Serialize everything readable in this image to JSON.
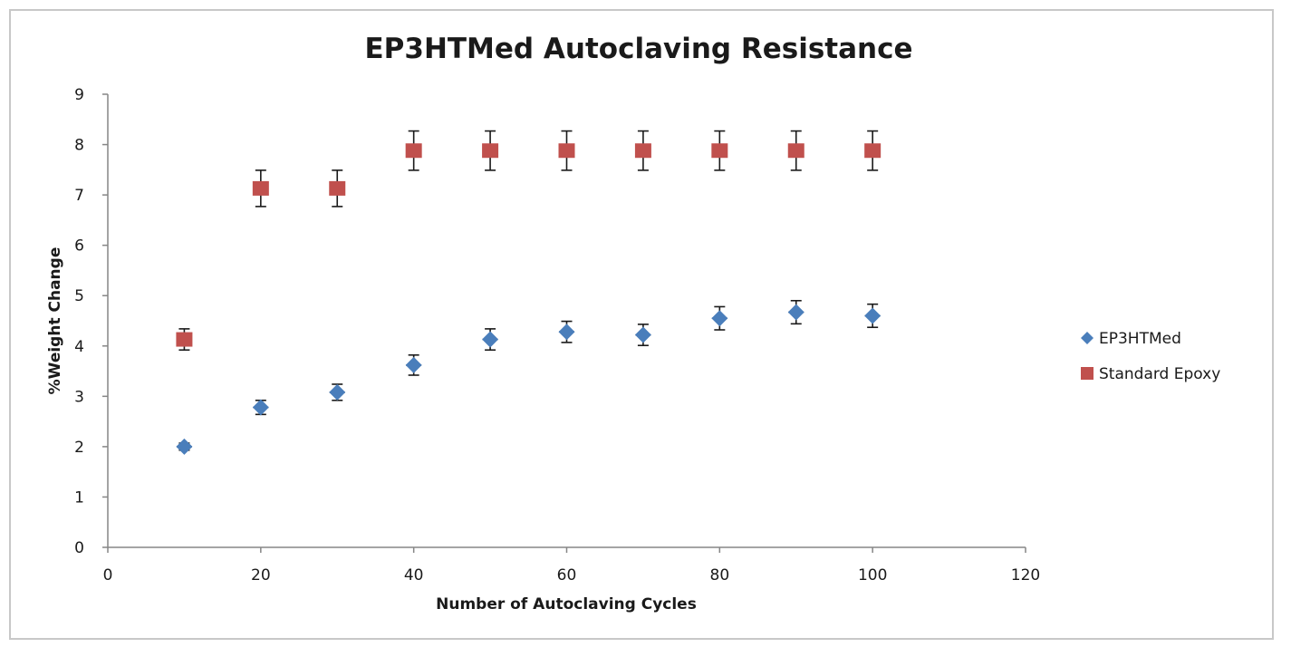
{
  "chart_data": {
    "type": "scatter",
    "title": "EP3HTMed Autoclaving Resistance",
    "xlabel": "Number of Autoclaving  Cycles",
    "ylabel": "%Weight Change",
    "xlim": [
      0,
      120
    ],
    "ylim": [
      0,
      9
    ],
    "xticks": [
      0,
      20,
      40,
      60,
      80,
      100,
      120
    ],
    "yticks": [
      0,
      1,
      2,
      3,
      4,
      5,
      6,
      7,
      8,
      9
    ],
    "grid": false,
    "legend_position": "right",
    "series": [
      {
        "name": "EP3HTMed",
        "marker": "diamond",
        "color": "#4a7ebb",
        "x": [
          10,
          20,
          30,
          40,
          50,
          60,
          70,
          80,
          90,
          100
        ],
        "y": [
          2.0,
          2.78,
          3.08,
          3.62,
          4.13,
          4.28,
          4.22,
          4.55,
          4.67,
          4.6
        ],
        "y_error": [
          0.07,
          0.14,
          0.16,
          0.2,
          0.21,
          0.21,
          0.21,
          0.23,
          0.23,
          0.23
        ],
        "x_error": [
          1,
          1,
          1,
          1,
          1,
          1,
          1,
          1,
          1,
          1
        ]
      },
      {
        "name": "Standard Epoxy",
        "marker": "square",
        "color": "#c0504d",
        "x": [
          10,
          20,
          30,
          40,
          50,
          60,
          70,
          80,
          90,
          100
        ],
        "y": [
          4.13,
          7.13,
          7.13,
          7.88,
          7.88,
          7.88,
          7.88,
          7.88,
          7.88,
          7.88
        ],
        "y_error": [
          0.21,
          0.36,
          0.36,
          0.39,
          0.39,
          0.39,
          0.39,
          0.39,
          0.39,
          0.39
        ],
        "x_error": [
          1,
          1,
          1,
          1,
          1,
          1,
          1,
          1,
          1,
          1
        ]
      }
    ]
  }
}
